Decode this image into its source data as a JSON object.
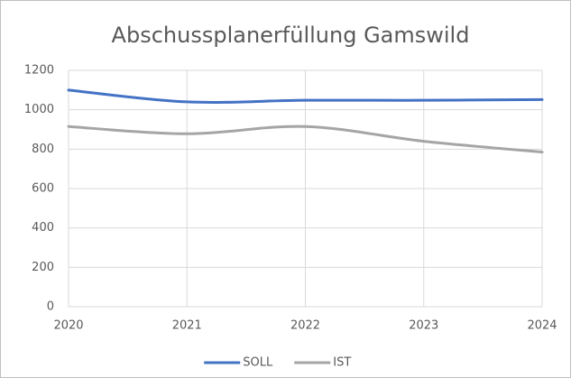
{
  "chart_data": {
    "type": "line",
    "title": "Abschussplanerfüllung Gamswild",
    "x": [
      2020,
      2021,
      2022,
      2023,
      2024
    ],
    "xlim": [
      2020,
      2024
    ],
    "xticks": [
      2020,
      2021,
      2022,
      2023,
      2024
    ],
    "ylim": [
      0,
      1200
    ],
    "yticks": [
      0,
      200,
      400,
      600,
      800,
      1000,
      1200
    ],
    "grid": true,
    "smooth": true,
    "legend": "bottom",
    "series": [
      {
        "name": "SOLL",
        "color": "#4472c4",
        "values": [
          1100,
          1040,
          1048,
          1048,
          1052
        ]
      },
      {
        "name": "IST",
        "color": "#a5a5a5",
        "values": [
          915,
          878,
          915,
          840,
          785
        ]
      }
    ]
  }
}
